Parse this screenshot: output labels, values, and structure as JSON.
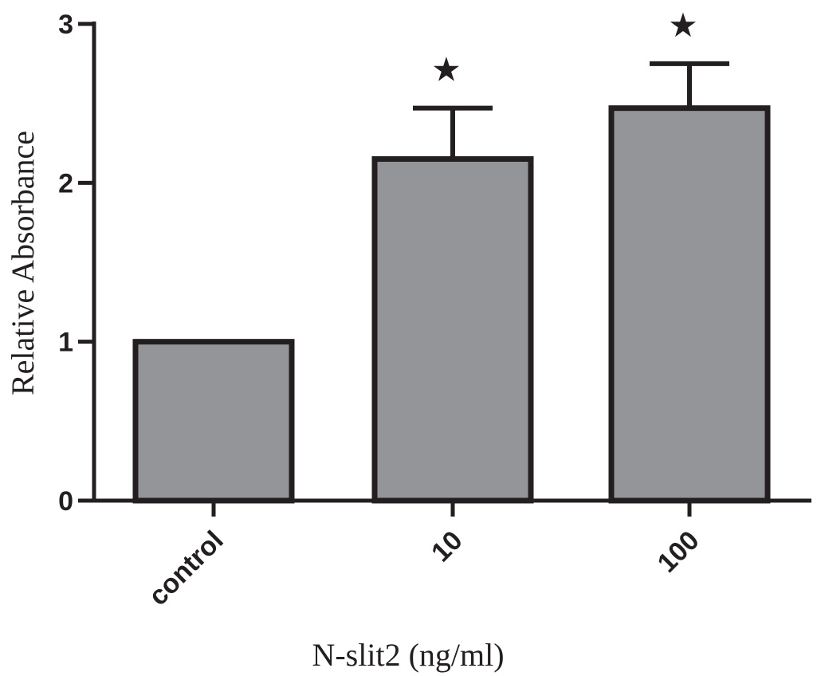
{
  "chart_data": {
    "type": "bar",
    "categories": [
      "control",
      "10",
      "100"
    ],
    "values": [
      1.0,
      2.15,
      2.47
    ],
    "error_upper": [
      0.0,
      0.32,
      0.28
    ],
    "significance": [
      "",
      "★",
      "★"
    ],
    "xlabel": "N-slit2 (ng/ml)",
    "ylabel": "Relative Absorbance",
    "ylim": [
      0,
      3
    ],
    "yticks": [
      0,
      1,
      2,
      3
    ],
    "grid": false,
    "legend": "none",
    "bar_color": "#939598",
    "edge_color": "#231f20"
  }
}
